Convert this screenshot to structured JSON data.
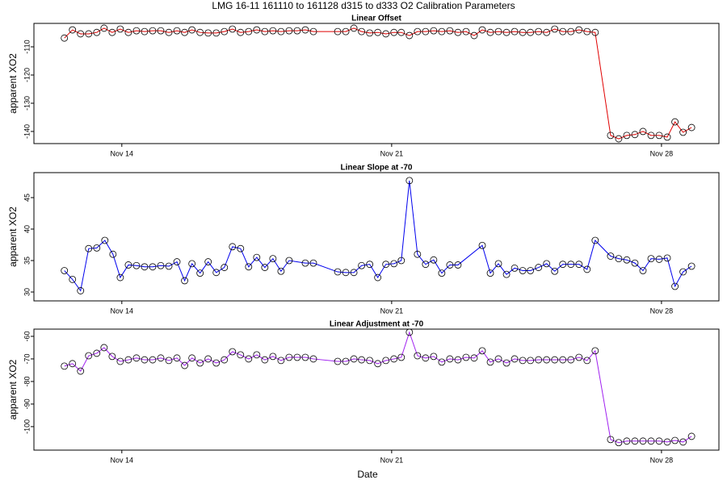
{
  "title": "LMG   16-11    161110 to 161128    d315 to d333   O2 Calibration Parameters",
  "x_label": "Date",
  "chart_data": [
    {
      "type": "line",
      "title": "Linear Offset",
      "y_label": "apparent XO2",
      "color": "#e00000",
      "x": [
        12.51,
        12.72,
        12.93,
        13.14,
        13.35,
        13.54,
        13.75,
        13.96,
        14.17,
        14.38,
        14.59,
        14.8,
        15.01,
        15.22,
        15.43,
        15.63,
        15.82,
        16.03,
        16.24,
        16.45,
        16.66,
        16.87,
        17.08,
        17.29,
        17.5,
        17.71,
        17.92,
        18.13,
        18.34,
        18.55,
        18.76,
        18.97,
        19.6,
        19.81,
        20.02,
        20.22,
        20.43,
        20.64,
        20.85,
        21.06,
        21.25,
        21.46,
        21.67,
        21.88,
        22.09,
        22.3,
        22.51,
        22.72,
        22.93,
        23.14,
        23.35,
        23.56,
        23.77,
        23.98,
        24.19,
        24.4,
        24.6,
        24.81,
        25.02,
        25.23,
        25.44,
        25.65,
        25.86,
        26.07,
        26.28,
        26.68,
        26.89,
        27.1,
        27.31,
        27.52,
        27.73,
        27.94,
        28.15,
        28.35,
        28.56,
        28.78
      ],
      "values": [
        -106.9,
        -104,
        -105.4,
        -105.4,
        -104.9,
        -103.4,
        -104.9,
        -103.7,
        -104.9,
        -104.3,
        -104.6,
        -104.3,
        -104.3,
        -104.9,
        -104.3,
        -104.9,
        -104,
        -104.9,
        -105.1,
        -105.1,
        -104.6,
        -103.7,
        -104.9,
        -104.6,
        -104,
        -104.6,
        -104.3,
        -104.6,
        -104.3,
        -104.3,
        -104,
        -104.6,
        -104.6,
        -104.6,
        -103.4,
        -104.6,
        -105.1,
        -104.9,
        -105.4,
        -104.9,
        -104.9,
        -106,
        -104.6,
        -104.6,
        -104.3,
        -104.6,
        -104.3,
        -104.9,
        -104.6,
        -106,
        -104,
        -104.9,
        -104.6,
        -104.9,
        -104.6,
        -104.9,
        -104.9,
        -104.6,
        -104.9,
        -103.7,
        -104.6,
        -104.6,
        -104,
        -104.6,
        -104.9,
        -141.4,
        -142.6,
        -141.4,
        -141.1,
        -140,
        -141.4,
        -141.4,
        -142,
        -136.6,
        -140.3,
        -138.6
      ],
      "xlim": [
        11.72,
        29.49
      ],
      "xticks": [
        {
          "value": 14,
          "label": "Nov 14"
        },
        {
          "value": 21,
          "label": "Nov 21"
        },
        {
          "value": 28,
          "label": "Nov 28"
        }
      ],
      "ylim": [
        -144.3,
        -101.7
      ],
      "yticks": [
        -140,
        -130,
        -120,
        -110
      ]
    },
    {
      "type": "line",
      "title": "Linear Slope at -70",
      "y_label": "apparent XO2",
      "color": "#0000ee",
      "x": [
        12.51,
        12.72,
        12.93,
        13.14,
        13.35,
        13.56,
        13.77,
        13.96,
        14.17,
        14.38,
        14.59,
        14.8,
        15.01,
        15.22,
        15.43,
        15.63,
        15.82,
        16.03,
        16.24,
        16.45,
        16.66,
        16.87,
        17.08,
        17.29,
        17.5,
        17.71,
        17.92,
        18.13,
        18.34,
        18.76,
        18.97,
        19.6,
        19.81,
        20.02,
        20.22,
        20.43,
        20.64,
        20.85,
        21.06,
        21.25,
        21.46,
        21.67,
        21.88,
        22.09,
        22.3,
        22.51,
        22.72,
        23.35,
        23.56,
        23.77,
        23.98,
        24.19,
        24.4,
        24.6,
        24.81,
        25.02,
        25.23,
        25.44,
        25.65,
        25.86,
        26.07,
        26.28,
        26.68,
        26.89,
        27.1,
        27.31,
        27.52,
        27.73,
        27.94,
        28.15,
        28.35,
        28.56,
        28.78
      ],
      "values": [
        33.4,
        32,
        30.2,
        36.9,
        37,
        38.2,
        36,
        32.3,
        34.3,
        34.2,
        34,
        34,
        34.2,
        34.1,
        34.8,
        31.8,
        34.5,
        33,
        34.8,
        33.1,
        33.9,
        37.2,
        36.9,
        34,
        35.5,
        33.9,
        35.3,
        33.3,
        35,
        34.6,
        34.6,
        33.2,
        33.1,
        33.1,
        34.2,
        34.4,
        32.3,
        34.4,
        34.5,
        35,
        47.7,
        36,
        34.4,
        35.1,
        33,
        34.3,
        34.3,
        37.4,
        33,
        34.5,
        32.8,
        33.8,
        33.4,
        33.4,
        33.9,
        34.5,
        33.3,
        34.4,
        34.4,
        34.4,
        33.6,
        38.2,
        35.7,
        35.3,
        35.1,
        34.6,
        33.4,
        35.3,
        35.2,
        35.4,
        30.9,
        33.2,
        34.1
      ],
      "xlim": [
        11.72,
        29.49
      ],
      "xticks": [
        {
          "value": 14,
          "label": "Nov 14"
        },
        {
          "value": 21,
          "label": "Nov 21"
        },
        {
          "value": 28,
          "label": "Nov 28"
        }
      ],
      "ylim": [
        28.59,
        48.97
      ],
      "yticks": [
        30,
        35,
        40,
        45
      ]
    },
    {
      "type": "line",
      "title": "Linear Adjustment at -70",
      "y_label": "apparent XO2",
      "color": "#a020f0",
      "x": [
        12.51,
        12.72,
        12.93,
        13.14,
        13.35,
        13.54,
        13.75,
        13.96,
        14.17,
        14.38,
        14.59,
        14.8,
        15.01,
        15.22,
        15.43,
        15.63,
        15.82,
        16.03,
        16.24,
        16.45,
        16.66,
        16.87,
        17.08,
        17.29,
        17.5,
        17.71,
        17.92,
        18.13,
        18.34,
        18.55,
        18.76,
        18.97,
        19.6,
        19.81,
        20.02,
        20.22,
        20.43,
        20.64,
        20.85,
        21.06,
        21.25,
        21.46,
        21.67,
        21.88,
        22.09,
        22.3,
        22.51,
        22.72,
        22.93,
        23.14,
        23.35,
        23.56,
        23.77,
        23.98,
        24.19,
        24.4,
        24.6,
        24.81,
        25.02,
        25.23,
        25.44,
        25.65,
        25.86,
        26.07,
        26.28,
        26.68,
        26.89,
        27.1,
        27.31,
        27.52,
        27.73,
        27.94,
        28.15,
        28.35,
        28.56,
        28.78
      ],
      "values": [
        -73.2,
        -72.1,
        -75.4,
        -68.6,
        -67.5,
        -65,
        -68.9,
        -71.1,
        -70.4,
        -69.6,
        -70.4,
        -70.4,
        -69.6,
        -70.7,
        -69.6,
        -72.9,
        -69.6,
        -71.8,
        -70,
        -71.8,
        -70.4,
        -66.8,
        -68.2,
        -70,
        -68.2,
        -70.4,
        -68.9,
        -70.7,
        -69.3,
        -69.3,
        -69.3,
        -70,
        -71.1,
        -71.1,
        -70,
        -70.4,
        -70.7,
        -72.1,
        -70.7,
        -70,
        -69.3,
        -58.2,
        -68.6,
        -69.6,
        -68.9,
        -71.4,
        -70,
        -70.4,
        -69.3,
        -69.6,
        -66.4,
        -71.4,
        -70,
        -71.8,
        -70,
        -70.7,
        -70.7,
        -70.4,
        -70.4,
        -70.4,
        -70.4,
        -70.4,
        -69.3,
        -70.7,
        -66.4,
        -105.7,
        -107.1,
        -106.4,
        -106.4,
        -106.4,
        -106.4,
        -106.4,
        -106.8,
        -106.1,
        -106.8,
        -104.3
      ],
      "xlim": [
        11.72,
        29.49
      ],
      "xticks": [
        {
          "value": 14,
          "label": "Nov 14"
        },
        {
          "value": 21,
          "label": "Nov 21"
        },
        {
          "value": 28,
          "label": "Nov 28"
        }
      ],
      "ylim": [
        -110.4,
        -56.8
      ],
      "yticks": [
        -100,
        -90,
        -80,
        -70,
        -60
      ]
    }
  ]
}
